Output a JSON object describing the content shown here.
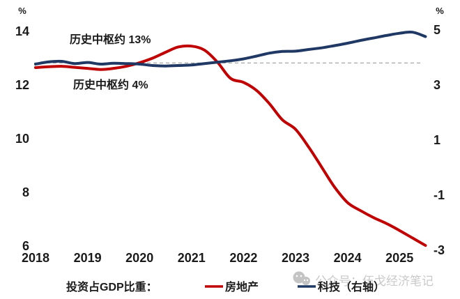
{
  "page": {
    "background": "#ffffff"
  },
  "chart_data": {
    "type": "line",
    "title": "",
    "x_label": "",
    "x_tick_labels": [
      "2018",
      "2019",
      "2020",
      "2021",
      "2022",
      "2023",
      "2024",
      "2025"
    ],
    "left_axis": {
      "unit_label": "%",
      "ticks": [
        "14",
        "12",
        "10",
        "8",
        "6"
      ],
      "tick_values": [
        14,
        12,
        10,
        8,
        6
      ],
      "range": [
        6,
        14
      ]
    },
    "right_axis": {
      "unit_label": "%",
      "ticks": [
        "5",
        "3",
        "1",
        "-1",
        "-3"
      ],
      "tick_values": [
        5,
        3,
        1,
        -1,
        -3
      ],
      "range": [
        -3,
        5
      ]
    },
    "x": [
      2018.0,
      2018.25,
      2018.5,
      2018.75,
      2019.0,
      2019.25,
      2019.5,
      2019.75,
      2020.0,
      2020.25,
      2020.5,
      2020.75,
      2021.0,
      2021.25,
      2021.5,
      2021.75,
      2022.0,
      2022.25,
      2022.5,
      2022.75,
      2023.0,
      2023.25,
      2023.5,
      2023.75,
      2024.0,
      2024.25,
      2024.5,
      2024.75,
      2025.0,
      2025.25,
      2025.5
    ],
    "series": [
      {
        "name": "房地产",
        "axis": "left",
        "color": "#C00000",
        "values": [
          12.65,
          12.68,
          12.7,
          12.66,
          12.62,
          12.58,
          12.62,
          12.7,
          12.83,
          13.0,
          13.22,
          13.42,
          13.45,
          13.3,
          12.85,
          12.25,
          12.1,
          11.8,
          11.3,
          10.7,
          10.35,
          9.7,
          8.95,
          8.2,
          7.62,
          7.32,
          7.06,
          6.84,
          6.58,
          6.3,
          6.02
        ]
      },
      {
        "name": "科技（右轴）",
        "axis": "right",
        "color": "#1F3864",
        "values": [
          3.76,
          3.84,
          3.86,
          3.78,
          3.82,
          3.76,
          3.79,
          3.78,
          3.76,
          3.71,
          3.69,
          3.71,
          3.73,
          3.78,
          3.83,
          3.88,
          3.95,
          4.05,
          4.16,
          4.22,
          4.23,
          4.29,
          4.35,
          4.43,
          4.52,
          4.62,
          4.71,
          4.8,
          4.88,
          4.92,
          4.76
        ]
      }
    ],
    "reference_line": {
      "value_right": 3.8,
      "value_left": 12.8,
      "style": "dashed",
      "color": "#A6A6A6"
    },
    "annotations": [
      {
        "text": "历史中枢约 13%",
        "series": "房地产",
        "color": "#C00000"
      },
      {
        "text": "历史中枢约 4%",
        "series": "科技",
        "color": "#1F3864"
      }
    ],
    "legend": {
      "prefix": "投资占GDP比重：",
      "items": [
        {
          "label": "房地产",
          "color": "#C00000"
        },
        {
          "label": "科技（右轴）",
          "color": "#1F3864"
        }
      ],
      "position": "bottom"
    },
    "grid": false
  },
  "watermark": {
    "text": "公众号：伍戈经济笔记",
    "icon": "wechat-icon",
    "color": "#c9c9c9"
  }
}
